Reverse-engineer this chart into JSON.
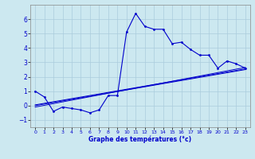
{
  "xlabel": "Graphe des températures (°c)",
  "xlim": [
    -0.5,
    23.5
  ],
  "ylim": [
    -1.5,
    7.0
  ],
  "yticks": [
    -1,
    0,
    1,
    2,
    3,
    4,
    5,
    6
  ],
  "xticks": [
    0,
    1,
    2,
    3,
    4,
    5,
    6,
    7,
    8,
    9,
    10,
    11,
    12,
    13,
    14,
    15,
    16,
    17,
    18,
    19,
    20,
    21,
    22,
    23
  ],
  "background_color": "#cce8f0",
  "grid_color": "#aaccdd",
  "line_color": "#0000cc",
  "line1_x": [
    0,
    1,
    2,
    3,
    4,
    5,
    6,
    7,
    8,
    9,
    10,
    11,
    12,
    13,
    14,
    15,
    16,
    17,
    18,
    19,
    20,
    21,
    22,
    23
  ],
  "line1_y": [
    1.0,
    0.6,
    -0.4,
    -0.1,
    -0.2,
    -0.3,
    -0.5,
    -0.3,
    0.7,
    0.7,
    5.1,
    6.4,
    5.5,
    5.3,
    5.3,
    4.3,
    4.4,
    3.9,
    3.5,
    3.5,
    2.6,
    3.1,
    2.9,
    2.6
  ],
  "line2_x": [
    0,
    23
  ],
  "line2_y": [
    0.05,
    2.55
  ],
  "line3_x": [
    0,
    23
  ],
  "line3_y": [
    0.0,
    2.5
  ],
  "line4_x": [
    0,
    23
  ],
  "line4_y": [
    -0.1,
    2.65
  ]
}
